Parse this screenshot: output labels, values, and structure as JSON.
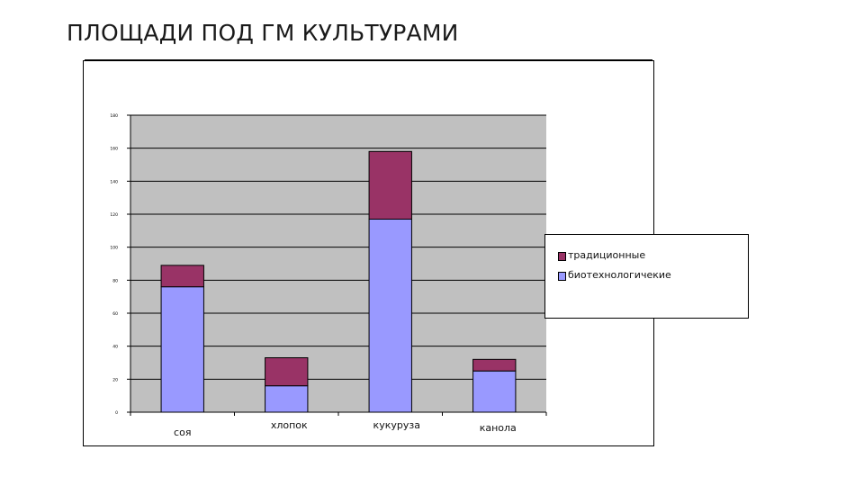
{
  "slide": {
    "title": "ПЛОЩАДИ ПОД ГМ КУЛЬТУРАМИ"
  },
  "chart_data": {
    "type": "bar",
    "stacked": true,
    "categories": [
      "соя",
      "хлопок",
      "кукуруза",
      "канола"
    ],
    "series": [
      {
        "name": "биотехнологичекие",
        "color": "#9999ff",
        "values": [
          76,
          16,
          117,
          25
        ]
      },
      {
        "name": "традиционные",
        "color": "#993366",
        "values": [
          13,
          17,
          41,
          7
        ]
      }
    ],
    "ylim": [
      0,
      180
    ],
    "yticks": [
      "0",
      "20",
      "40",
      "60",
      "80",
      "100",
      "120",
      "140",
      "160",
      "180"
    ],
    "ytick_values": [
      0,
      20,
      40,
      60,
      80,
      100,
      120,
      140,
      160,
      180
    ],
    "ylabel": "",
    "xlabel": "",
    "grid": true,
    "plot_background": "#c0c0c0",
    "legend_position": "right"
  }
}
